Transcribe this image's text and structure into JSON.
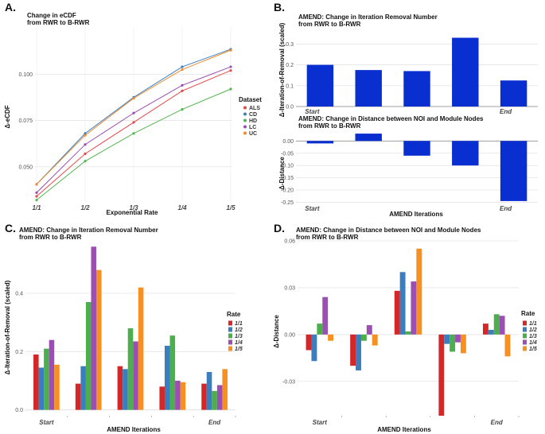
{
  "colors": {
    "ALS": "#e34a4a",
    "CD": "#3b7fbf",
    "HD": "#53b54f",
    "LC": "#9a4fb0",
    "UC": "#f08a2c",
    "r1": "#d62728",
    "r2": "#3a7ebf",
    "r3": "#4cae4c",
    "r4": "#9b4fb3",
    "r5": "#f7901e",
    "bar_blue": "#0a2fd1",
    "grid": "#e4e4e4",
    "axis": "#888888"
  },
  "chart_data": [
    {
      "id": "A",
      "panel_label": "A.",
      "type": "line",
      "title": [
        "Change in eCDF",
        "from RWR to B-RWR"
      ],
      "xlabel": "Exponential Rate",
      "ylabel": "Δ-eCDF",
      "x": [
        "1/1",
        "1/2",
        "1/3",
        "1/4",
        "1/5"
      ],
      "ylim": [
        0.031,
        0.1255
      ],
      "yticks": [
        0.05,
        0.075,
        0.1
      ],
      "ytick_labels": [
        "0.050",
        "0.075",
        "0.100"
      ],
      "legend_title": "Dataset",
      "series": [
        {
          "name": "ALS",
          "values": [
            0.034,
            0.057,
            0.074,
            0.091,
            0.102
          ]
        },
        {
          "name": "CD",
          "values": [
            0.0405,
            0.068,
            0.0875,
            0.104,
            0.1135
          ]
        },
        {
          "name": "HD",
          "values": [
            0.032,
            0.053,
            0.068,
            0.081,
            0.092
          ]
        },
        {
          "name": "LC",
          "values": [
            0.036,
            0.062,
            0.079,
            0.094,
            0.104
          ]
        },
        {
          "name": "UC",
          "values": [
            0.0405,
            0.067,
            0.087,
            0.1025,
            0.113
          ]
        }
      ]
    },
    {
      "id": "B1",
      "panel_label": "B.",
      "type": "bar",
      "title": [
        "AMEND: Change in Iteration Removal Number",
        "from RWR to B-RWR"
      ],
      "xlabel": "",
      "ylabel": "Δ-Iteration-of-Removal (scaled)",
      "categories": [
        "Start",
        "",
        "",
        "",
        "End"
      ],
      "values": [
        0.2,
        0.175,
        0.17,
        0.33,
        0.125
      ],
      "ylim": [
        0,
        0.37
      ],
      "yticks": [
        0,
        0.1,
        0.2,
        0.3
      ],
      "ytick_labels": [
        "0.0",
        "0.1",
        "0.2",
        "0.3"
      ]
    },
    {
      "id": "B2",
      "type": "bar",
      "title": [
        "AMEND: Change in Distance between NOI and Module Nodes",
        "from RWR to B-RWR"
      ],
      "xlabel": "AMEND Iterations",
      "ylabel": "Δ-Distance",
      "categories": [
        "Start",
        "",
        "",
        "",
        "End"
      ],
      "values": [
        -0.01,
        0.03,
        -0.06,
        -0.1,
        -0.245
      ],
      "ylim": [
        -0.255,
        0.04
      ],
      "yticks": [
        -0.25,
        -0.2,
        -0.15,
        -0.1,
        -0.05,
        0.0
      ],
      "ytick_labels": [
        "-0.25",
        "-0.20",
        "-0.15",
        "-0.10",
        "-0.05",
        "0.00"
      ]
    },
    {
      "id": "C",
      "panel_label": "C.",
      "type": "bar",
      "title": [
        "AMEND: Change in Iteration Removal Number",
        "from RWR to B-RWR"
      ],
      "xlabel": "AMEND Iterations",
      "ylabel": "Δ-Iteration-of-Removal (scaled)",
      "categories": [
        "Start",
        "",
        "",
        "",
        "End"
      ],
      "ylim": [
        -0.02,
        0.58
      ],
      "yticks": [
        0,
        0.2,
        0.4
      ],
      "ytick_labels": [
        "0.0",
        "0.2",
        "0.4"
      ],
      "legend_title": "Rate",
      "series": [
        {
          "name": "1/1",
          "values": [
            0.19,
            0.09,
            0.15,
            0.08,
            0.09
          ]
        },
        {
          "name": "1/2",
          "values": [
            0.145,
            0.15,
            0.14,
            0.22,
            0.13
          ]
        },
        {
          "name": "1/3",
          "values": [
            0.21,
            0.37,
            0.28,
            0.255,
            0.065
          ]
        },
        {
          "name": "1/4",
          "values": [
            0.24,
            0.56,
            0.235,
            0.1,
            0.085
          ]
        },
        {
          "name": "1/5",
          "values": [
            0.155,
            0.48,
            0.42,
            0.095,
            0.14
          ]
        }
      ]
    },
    {
      "id": "D",
      "panel_label": "D.",
      "type": "bar",
      "title": [
        "AMEND: Change in Distance between NOI and Module Nodes",
        "from RWR to B-RWR"
      ],
      "xlabel": "AMEND Iterations",
      "ylabel": "Δ-Distance",
      "categories": [
        "Start",
        "",
        "",
        "",
        "End"
      ],
      "ylim": [
        -0.052,
        0.06
      ],
      "yticks": [
        -0.03,
        0.0,
        0.03,
        0.06
      ],
      "ytick_labels": [
        "-0.03",
        "0.00",
        "0.03",
        "0.06"
      ],
      "legend_title": "Rate",
      "series": [
        {
          "name": "1/1",
          "values": [
            -0.01,
            -0.02,
            0.028,
            -0.052,
            0.007
          ]
        },
        {
          "name": "1/2",
          "values": [
            -0.017,
            -0.023,
            0.04,
            -0.006,
            0.003
          ]
        },
        {
          "name": "1/3",
          "values": [
            0.007,
            -0.004,
            0.002,
            -0.011,
            0.013
          ]
        },
        {
          "name": "1/4",
          "values": [
            0.024,
            0.006,
            0.034,
            -0.005,
            0.012
          ]
        },
        {
          "name": "1/5",
          "values": [
            -0.004,
            -0.007,
            0.055,
            -0.012,
            -0.014
          ]
        }
      ]
    }
  ]
}
